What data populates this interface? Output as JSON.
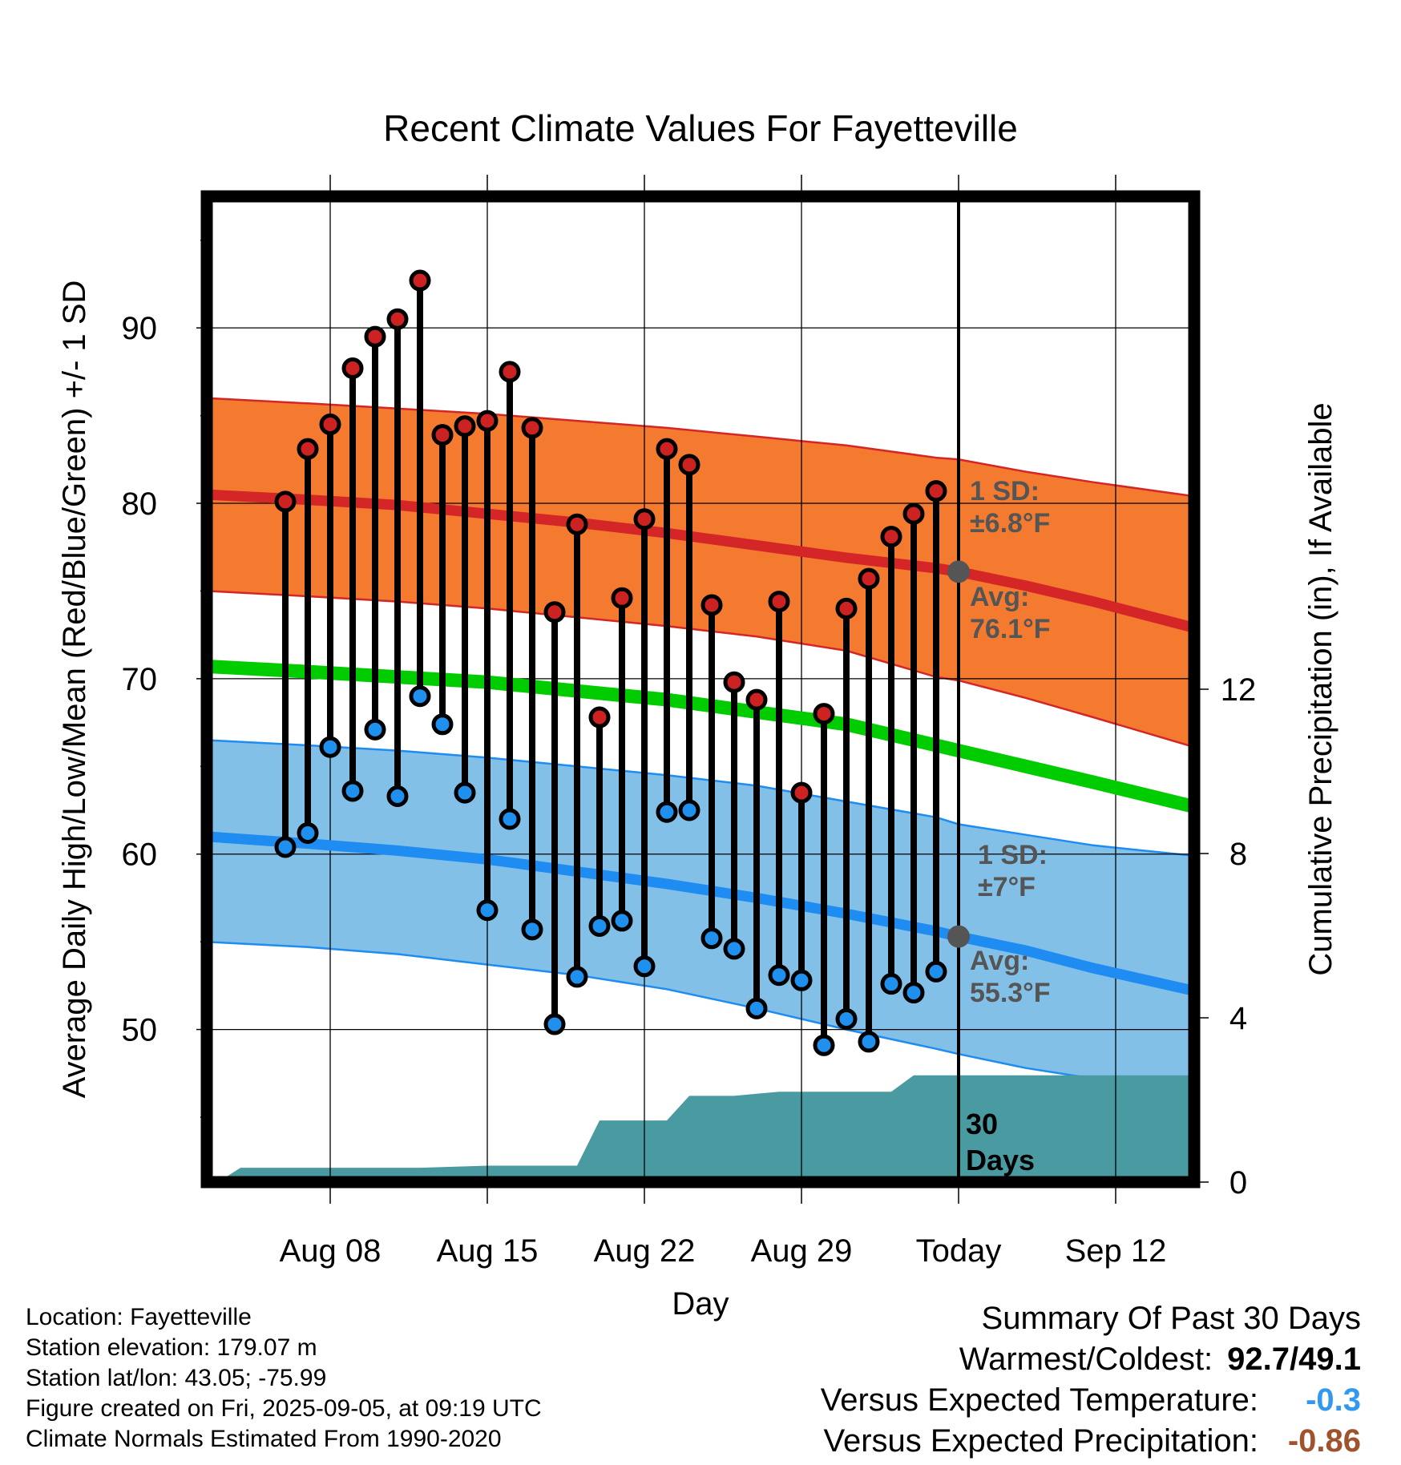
{
  "chart_data": {
    "type": "line",
    "title": "Recent Climate Values For Fayetteville",
    "xlabel": "Day",
    "ylabel_left": "Average Daily High/Low/Mean (Red/Blue/Green) +/- 1 SD",
    "ylabel_right": "Cumulative Precipitation (in), If Available",
    "x_range_days": [
      -33.5,
      10.5
    ],
    "x_ticks": [
      {
        "day": -28,
        "label": "Aug 08"
      },
      {
        "day": -21,
        "label": "Aug 15"
      },
      {
        "day": -14,
        "label": "Aug 22"
      },
      {
        "day": -7,
        "label": "Aug 29"
      },
      {
        "day": 0,
        "label": "Today"
      },
      {
        "day": 7,
        "label": "Sep 12"
      }
    ],
    "y_left_range": [
      41.3,
      97.5
    ],
    "y_left_ticks": [
      50,
      60,
      70,
      80,
      90
    ],
    "y_left_minor": [
      45,
      55,
      65,
      75,
      85,
      95
    ],
    "y_right_range": [
      0,
      24
    ],
    "y_right_ticks": [
      0,
      4,
      8,
      12
    ],
    "observed": {
      "days": [
        -30,
        -29,
        -28,
        -27,
        -26,
        -25,
        -24,
        -23,
        -22,
        -21,
        -20,
        -19,
        -18,
        -17,
        -16,
        -15,
        -14,
        -13,
        -12,
        -11,
        -10,
        -9,
        -8,
        -7,
        -6,
        -5,
        -4,
        -3,
        -2,
        -1
      ],
      "highs": [
        80.1,
        83.1,
        84.5,
        87.7,
        89.5,
        90.5,
        92.7,
        83.9,
        84.4,
        84.7,
        87.5,
        84.3,
        73.8,
        78.8,
        67.8,
        74.6,
        79.1,
        83.1,
        82.2,
        74.2,
        69.8,
        68.8,
        74.4,
        63.5,
        68.0,
        74.0,
        75.7,
        78.1,
        79.4,
        80.7
      ],
      "lows": [
        60.4,
        61.2,
        66.1,
        63.6,
        67.1,
        63.3,
        69.0,
        67.4,
        63.5,
        56.8,
        62.0,
        55.7,
        50.3,
        53.0,
        55.9,
        56.2,
        53.6,
        62.4,
        62.5,
        55.2,
        54.6,
        51.2,
        53.1,
        52.8,
        49.1,
        50.6,
        49.3,
        52.6,
        52.1,
        53.3
      ]
    },
    "normals": {
      "days": [
        -33.5,
        -29,
        -25,
        -21,
        -17,
        -13,
        -9,
        -5,
        -1,
        0,
        3,
        6,
        10.5
      ],
      "high_mean": [
        80.5,
        80.2,
        79.9,
        79.4,
        78.9,
        78.3,
        77.6,
        76.9,
        76.3,
        76.1,
        75.3,
        74.4,
        72.9
      ],
      "high_upper": [
        86.0,
        85.7,
        85.4,
        85.1,
        84.7,
        84.3,
        83.8,
        83.3,
        82.6,
        82.5,
        81.8,
        81.2,
        80.4
      ],
      "high_lower": [
        75.0,
        74.7,
        74.4,
        74.0,
        73.5,
        73.0,
        72.4,
        71.6,
        70.1,
        69.9,
        68.9,
        67.8,
        66.1
      ],
      "mean_line": [
        70.7,
        70.4,
        70.1,
        69.8,
        69.3,
        68.8,
        68.1,
        67.4,
        66.2,
        65.9,
        65.0,
        64.1,
        62.7
      ],
      "low_mean": [
        61.0,
        60.6,
        60.2,
        59.7,
        59.0,
        58.3,
        57.5,
        56.6,
        55.6,
        55.3,
        54.5,
        53.5,
        52.2
      ],
      "low_upper": [
        66.5,
        66.2,
        65.9,
        65.5,
        65.0,
        64.5,
        63.9,
        63.0,
        62.1,
        61.7,
        61.1,
        60.5,
        59.9
      ],
      "low_lower": [
        55.0,
        54.7,
        54.3,
        53.7,
        53.1,
        52.3,
        51.2,
        50.0,
        48.9,
        48.6,
        47.8,
        47.2,
        46.3
      ]
    },
    "precip": {
      "days": [
        -33,
        -32,
        -28,
        -24,
        -21,
        -17,
        -16,
        -14,
        -13,
        -12,
        -11,
        -10,
        -9,
        -8,
        -7,
        -6,
        -5,
        -4,
        -3,
        -2,
        -1,
        10.5
      ],
      "cumulative_in": [
        0.0,
        0.35,
        0.35,
        0.35,
        0.4,
        0.4,
        1.5,
        1.5,
        1.5,
        2.1,
        2.1,
        2.1,
        2.15,
        2.2,
        2.2,
        2.2,
        2.2,
        2.2,
        2.2,
        2.6,
        2.6,
        2.6
      ]
    },
    "today_markers": {
      "high_avg": 76.1,
      "low_avg": 55.3
    },
    "annotations": {
      "high_sd_line1": "1 SD:",
      "high_sd_line2": "±6.8°F",
      "high_avg_line1": "Avg:",
      "high_avg_line2": "76.1°F",
      "low_sd_line1": "1 SD:",
      "low_sd_line2": "±7°F",
      "low_avg_line1": "Avg:",
      "low_avg_line2": "55.3°F",
      "window_line1": "30",
      "window_line2": "Days"
    },
    "colors": {
      "high_band": "#f47a30",
      "high_line": "#d42626",
      "low_band": "#82c0e8",
      "low_line": "#1e8cf0",
      "mean_line": "#00cc00",
      "precip_fill": "#4a9aa2",
      "high_dot": "#cc2222",
      "low_dot": "#2090ee"
    },
    "grid": true
  },
  "info": {
    "location": "Location: Fayetteville",
    "elevation": "Station elevation: 179.07 m",
    "latlon": "Station lat/lon: 43.05; -75.99",
    "created": "Figure created on Fri, 2025-09-05, at 09:19 UTC",
    "normals": "Climate Normals Estimated From 1990-2020"
  },
  "summary": {
    "title": "Summary Of Past 30 Days",
    "warm_cold_label": "Warmest/Coldest:",
    "warm_cold_value": "92.7/49.1",
    "temp_label": "Versus Expected Temperature:",
    "temp_value": "-0.3",
    "temp_color": "#3399ee",
    "precip_label": "Versus Expected Precipitation:",
    "precip_value": "-0.86",
    "precip_color": "#a0522d"
  }
}
